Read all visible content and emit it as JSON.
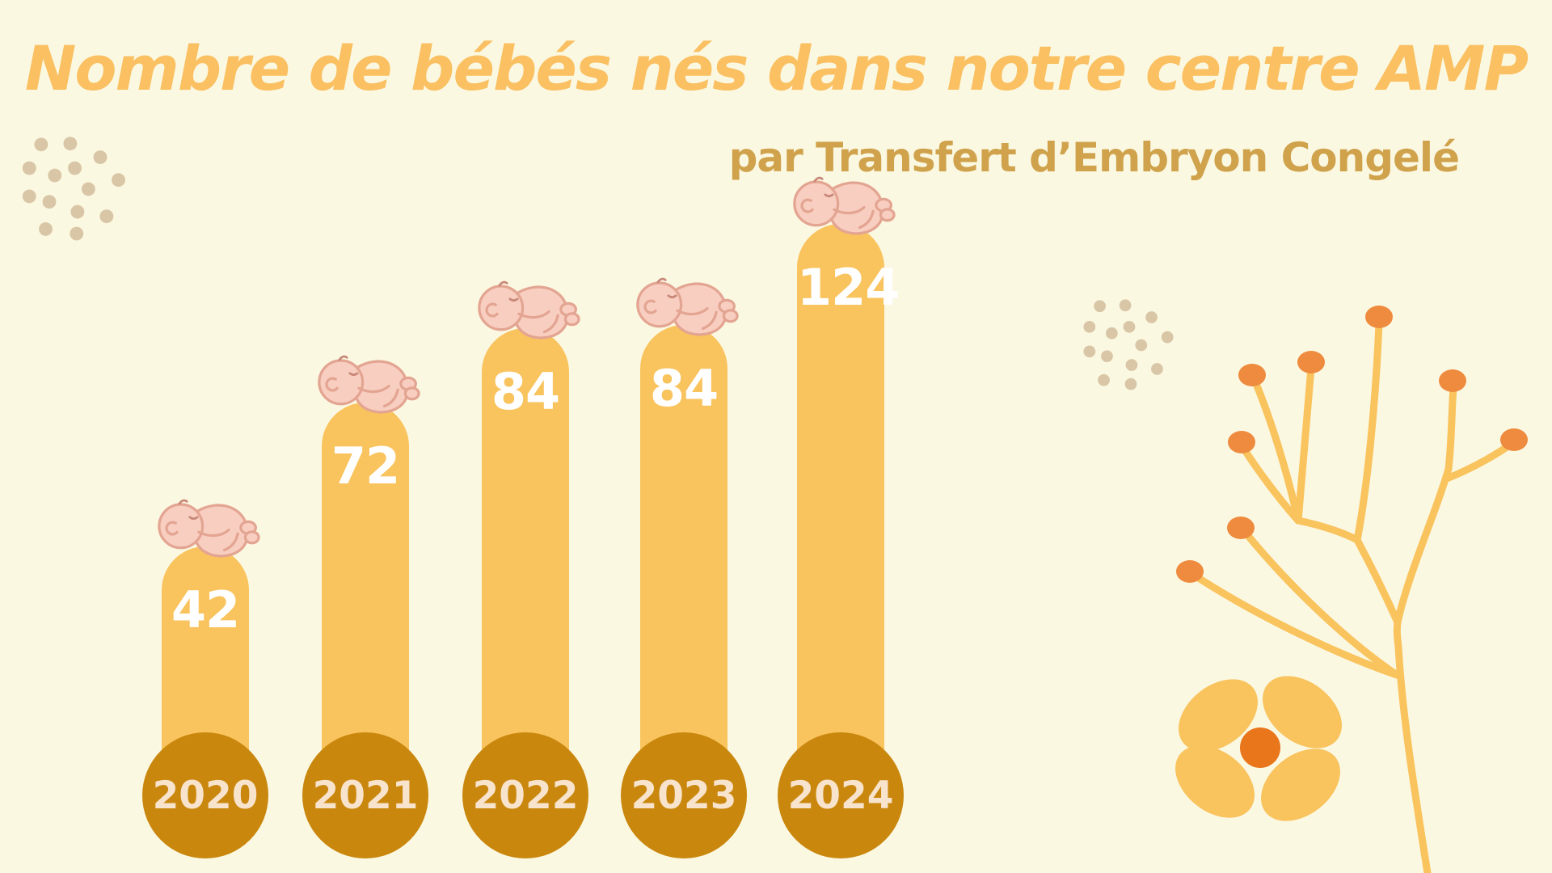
{
  "page": {
    "background": "#FBF8E2"
  },
  "header": {
    "title": "Nombre de bébés nés dans notre centre AMP",
    "subtitle": "par Transfert d’Embryon Congelé"
  },
  "chart_data": {
    "type": "bar",
    "categories": [
      "2020",
      "2021",
      "2022",
      "2023",
      "2024"
    ],
    "values": [
      42,
      72,
      84,
      84,
      124
    ],
    "title": "Nombre de bébés nés dans notre centre AMP",
    "subtitle": "par Transfert d’Embryon Congelé",
    "xlabel": "",
    "ylabel": "",
    "legend": false,
    "grid": false,
    "value_labels_shown": true,
    "bar_color": "#F9C35D",
    "value_label_color": "#FFFFFF",
    "category_badge_color": "#C9870D",
    "category_text_color": "#F8E3CC"
  },
  "colors": {
    "background": "#FBF8E2",
    "title": "#FAC061",
    "subtitle": "#CFA24B",
    "bar": "#F9C35D",
    "badge": "#C9870D",
    "badge_text": "#F8E3CC",
    "dots": "#D9C6A6",
    "berry": "#EE8B3E",
    "flower_petal": "#F9C35D",
    "flower_center": "#E9761B",
    "baby_skin": "#F8CEC1",
    "baby_outline": "#E3A592"
  },
  "decorations": [
    {
      "name": "baby-icon",
      "description": "sleeping newborn illustration on top of each bar"
    },
    {
      "name": "dots-cluster",
      "description": "beige dot clusters, top-left and mid-right"
    },
    {
      "name": "branch-icon",
      "description": "yellow branch with orange berries, right side"
    },
    {
      "name": "flower-icon",
      "description": "four-petal yellow flower with orange center, bottom right"
    }
  ]
}
